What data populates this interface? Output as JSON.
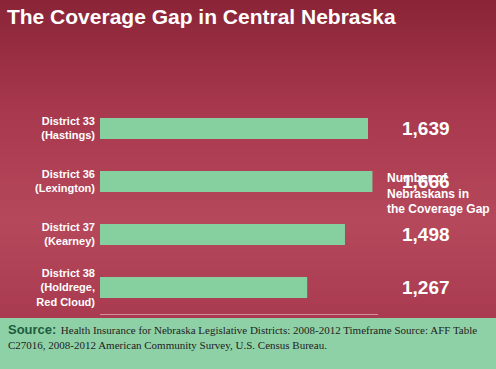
{
  "chart_data": {
    "type": "bar",
    "title": "The Coverage Gap in Central Nebraska",
    "annotations": [
      "Number of\nNebraskans in\nthe Coverage Gap"
    ],
    "categories": [
      "District 33\n(Hastings)",
      "District 36\n(Lexington)",
      "District 37\n(Kearney)",
      "District 38\n(Holdrege,\nRed Cloud)"
    ],
    "values": [
      1639,
      1666,
      1498,
      1267
    ],
    "value_labels": [
      "1,639",
      "1,666",
      "1,498",
      "1,267"
    ],
    "color": "#86d09f",
    "orientation": "horizontal",
    "xlim": [
      0,
      1700
    ],
    "data_labels": true,
    "grid": false,
    "tick_labels": "y",
    "source": {
      "label": "Source:",
      "text": "Health Insurance for Nebraska Legislative Districts: 2008-2012 Timeframe Source: AFF Table C27016, 2008-2012 American Community Survey, U.S. Census Bureau."
    }
  }
}
